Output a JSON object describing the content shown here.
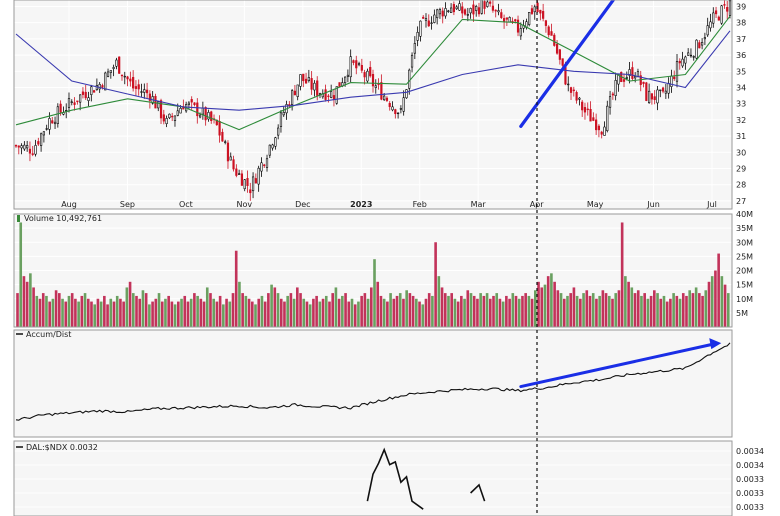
{
  "chart_data": [
    {
      "type": "candlestick",
      "x_months": [
        "Aug",
        "Sep",
        "Oct",
        "Nov",
        "Dec",
        "2023",
        "Feb",
        "Mar",
        "Apr",
        "May",
        "Jun",
        "Jul"
      ],
      "y_ticks": [
        27,
        28,
        29,
        30,
        31,
        32,
        33,
        34,
        35,
        36,
        37,
        38,
        39
      ],
      "ylim": [
        26.5,
        39.4
      ],
      "grid": true,
      "series": [
        {
          "name": "price",
          "x": [
            0,
            6,
            12,
            18,
            24,
            30,
            36,
            42,
            48,
            54,
            60,
            66,
            72,
            78,
            84,
            90,
            96,
            102,
            108,
            114,
            120,
            126,
            132,
            138,
            144,
            150,
            156,
            162,
            168,
            174,
            180,
            186,
            192,
            198,
            204,
            210,
            216,
            222,
            226,
            232,
            238,
            244,
            250,
            256
          ],
          "y": [
            30.4,
            30.2,
            32.0,
            32.8,
            33.6,
            34.2,
            35.5,
            34.0,
            33.6,
            31.8,
            33.0,
            32.5,
            31.6,
            29.0,
            27.8,
            30.0,
            32.5,
            34.6,
            33.8,
            33.6,
            35.5,
            34.6,
            33.5,
            32.4,
            37.5,
            38.5,
            39.0,
            38.5,
            39.2,
            38.2,
            37.6,
            39.0,
            37.2,
            34.0,
            32.5,
            31.5,
            34.5,
            35.0,
            33.5,
            33.4,
            35.6,
            36.5,
            38.2,
            39.2
          ]
        },
        {
          "name": "short-ma",
          "x": [
            0,
            20,
            40,
            60,
            80,
            100,
            120,
            140,
            160,
            180,
            200,
            220,
            240,
            256
          ],
          "y": [
            31.7,
            32.6,
            33.3,
            32.8,
            31.4,
            32.9,
            34.3,
            34.2,
            38.2,
            38.0,
            36.2,
            34.4,
            34.8,
            38.4
          ]
        },
        {
          "name": "long-ma",
          "x": [
            0,
            20,
            40,
            60,
            80,
            100,
            120,
            140,
            160,
            180,
            200,
            220,
            240,
            256
          ],
          "y": [
            37.3,
            34.4,
            33.6,
            32.8,
            32.6,
            32.9,
            33.4,
            33.7,
            34.8,
            35.4,
            35.0,
            34.8,
            34.0,
            37.5
          ]
        }
      ],
      "trendline": {
        "x": [
          181,
          215
        ],
        "y": [
          31.6,
          39.6
        ]
      },
      "event_marker_x": 179
    },
    {
      "type": "bar",
      "title": "Volume 10,492,761",
      "y_ticks": [
        "5M",
        "10M",
        "15M",
        "20M",
        "25M",
        "30M",
        "35M",
        "40M"
      ],
      "y_tick_values": [
        5,
        10,
        15,
        20,
        25,
        30,
        35,
        40
      ],
      "ylim": [
        0,
        40
      ],
      "units": "millions of shares",
      "series": [
        {
          "name": "volume",
          "values": [
            12,
            37,
            18,
            16,
            19,
            14,
            11,
            10,
            12,
            11,
            9,
            10,
            13,
            12,
            10,
            9,
            11,
            12,
            10,
            9,
            11,
            12,
            10,
            9,
            8,
            10,
            9,
            11,
            8,
            10,
            9,
            11,
            10,
            9,
            14,
            16,
            12,
            11,
            10,
            13,
            12,
            8,
            9,
            10,
            12,
            9,
            10,
            11,
            9,
            8,
            9,
            10,
            11,
            9,
            10,
            12,
            11,
            10,
            9,
            14,
            12,
            10,
            9,
            11,
            8,
            10,
            9,
            12,
            27,
            16,
            12,
            11,
            10,
            9,
            8,
            10,
            11,
            9,
            12,
            15,
            14,
            12,
            10,
            9,
            11,
            12,
            10,
            14,
            12,
            10,
            9,
            8,
            10,
            11,
            9,
            10,
            11,
            9,
            12,
            14,
            10,
            11,
            12,
            9,
            10,
            8,
            9,
            11,
            12,
            10,
            14,
            24,
            16,
            11,
            10,
            9,
            12,
            10,
            11,
            12,
            10,
            13,
            12,
            11,
            10,
            9,
            8,
            10,
            12,
            11,
            30,
            18,
            14,
            12,
            11,
            12,
            10,
            9,
            11,
            10,
            13,
            12,
            11,
            10,
            12,
            11,
            12,
            10,
            11,
            12,
            10,
            9,
            11,
            10,
            12,
            11,
            10,
            11,
            12,
            11,
            10,
            13,
            16,
            14,
            15,
            18,
            19,
            16,
            13,
            12,
            10,
            11,
            12,
            14,
            11,
            10,
            12,
            13,
            11,
            12,
            10,
            11,
            13,
            12,
            11,
            10,
            12,
            13,
            37,
            18,
            16,
            14,
            12,
            13,
            11,
            12,
            10,
            11,
            13,
            12,
            10,
            11,
            9,
            10,
            12,
            11,
            10,
            12,
            11,
            13,
            12,
            14,
            12,
            11,
            13,
            16,
            18,
            20,
            26,
            18,
            15,
            12
          ]
        }
      ]
    },
    {
      "type": "line",
      "title": "Accum/Dist",
      "series": [
        {
          "name": "Accum/Dist",
          "x": [
            0,
            10,
            20,
            30,
            40,
            50,
            60,
            70,
            80,
            90,
            100,
            110,
            120,
            130,
            140,
            150,
            160,
            170,
            180,
            190,
            200,
            210,
            220,
            230,
            240,
            250,
            256
          ],
          "y": [
            5,
            10,
            12,
            14,
            13,
            16,
            17,
            18,
            19,
            17,
            20,
            18,
            17,
            24,
            30,
            33,
            35,
            36,
            34,
            37,
            42,
            45,
            50,
            53,
            56,
            72,
            80
          ]
        }
      ],
      "trendline": {
        "x": [
          181,
          250
        ],
        "y": [
          38,
          80
        ]
      }
    },
    {
      "type": "line",
      "title": "DAL:$NDX 0.0032",
      "y_ticks": [
        "0.0034",
        "0.0034",
        "0.0033",
        "0.0033",
        "0.0033"
      ],
      "series": [
        {
          "name": "DAL:$NDX",
          "x": [
            126,
            128,
            130,
            132,
            134,
            136,
            138,
            140,
            142,
            146
          ],
          "y": [
            0.00306,
            0.00326,
            0.00334,
            0.00344,
            0.00333,
            0.00335,
            0.0032,
            0.00324,
            0.00306,
            0.003
          ]
        },
        {
          "name": "DAL:$NDX tail",
          "x": [
            163,
            166,
            168
          ],
          "y": [
            0.00312,
            0.00318,
            0.00306
          ]
        }
      ]
    }
  ]
}
